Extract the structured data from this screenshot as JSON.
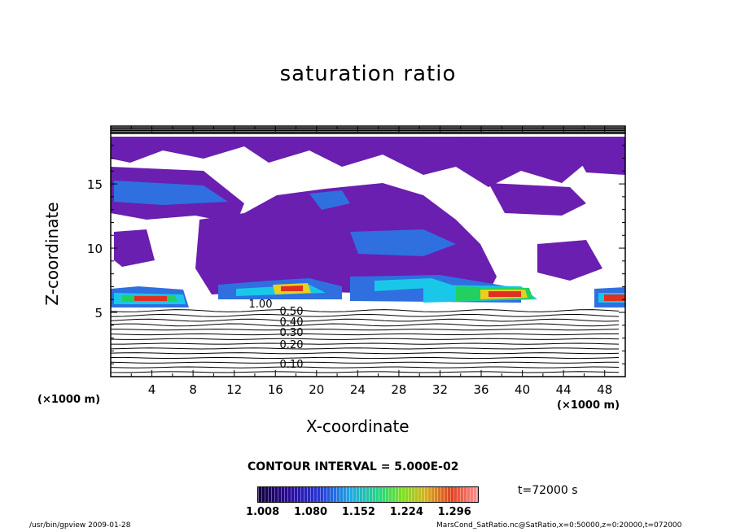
{
  "chart_data": {
    "type": "heatmap",
    "title": "saturation ratio",
    "xlabel": "X-coordinate",
    "ylabel": "Z-coordinate",
    "x_unit": "(×1000 m)",
    "xlim": [
      0,
      50
    ],
    "ylim": [
      0,
      19.5
    ],
    "x_ticks": [
      4,
      8,
      12,
      16,
      20,
      24,
      28,
      32,
      36,
      40,
      44,
      48
    ],
    "y_ticks": [
      5,
      10,
      15
    ],
    "contour_labels": [
      "0.10",
      "0.20",
      "0.30",
      "0.40",
      "0.50",
      "1.00"
    ],
    "contour_interval": "CONTOUR INTERVAL = 5.000E-02",
    "colorbar_ticks": [
      "1.008",
      "1.080",
      "1.152",
      "1.224",
      "1.296"
    ],
    "colorbar_range": [
      1.0,
      1.33
    ],
    "time": "t=72000 s",
    "colors": {
      "low": "#6a1fb0",
      "mid": "#2f6fe0",
      "high_blue": "#19c8e8",
      "green": "#22d060",
      "yellow": "#e8d020",
      "red": "#e03020"
    }
  },
  "footer": {
    "left": "/usr/bin/gpview   2009-01-28",
    "right": "MarsCond_SatRatio.nc@SatRatio,x=0:50000,z=0:20000,t=072000"
  }
}
